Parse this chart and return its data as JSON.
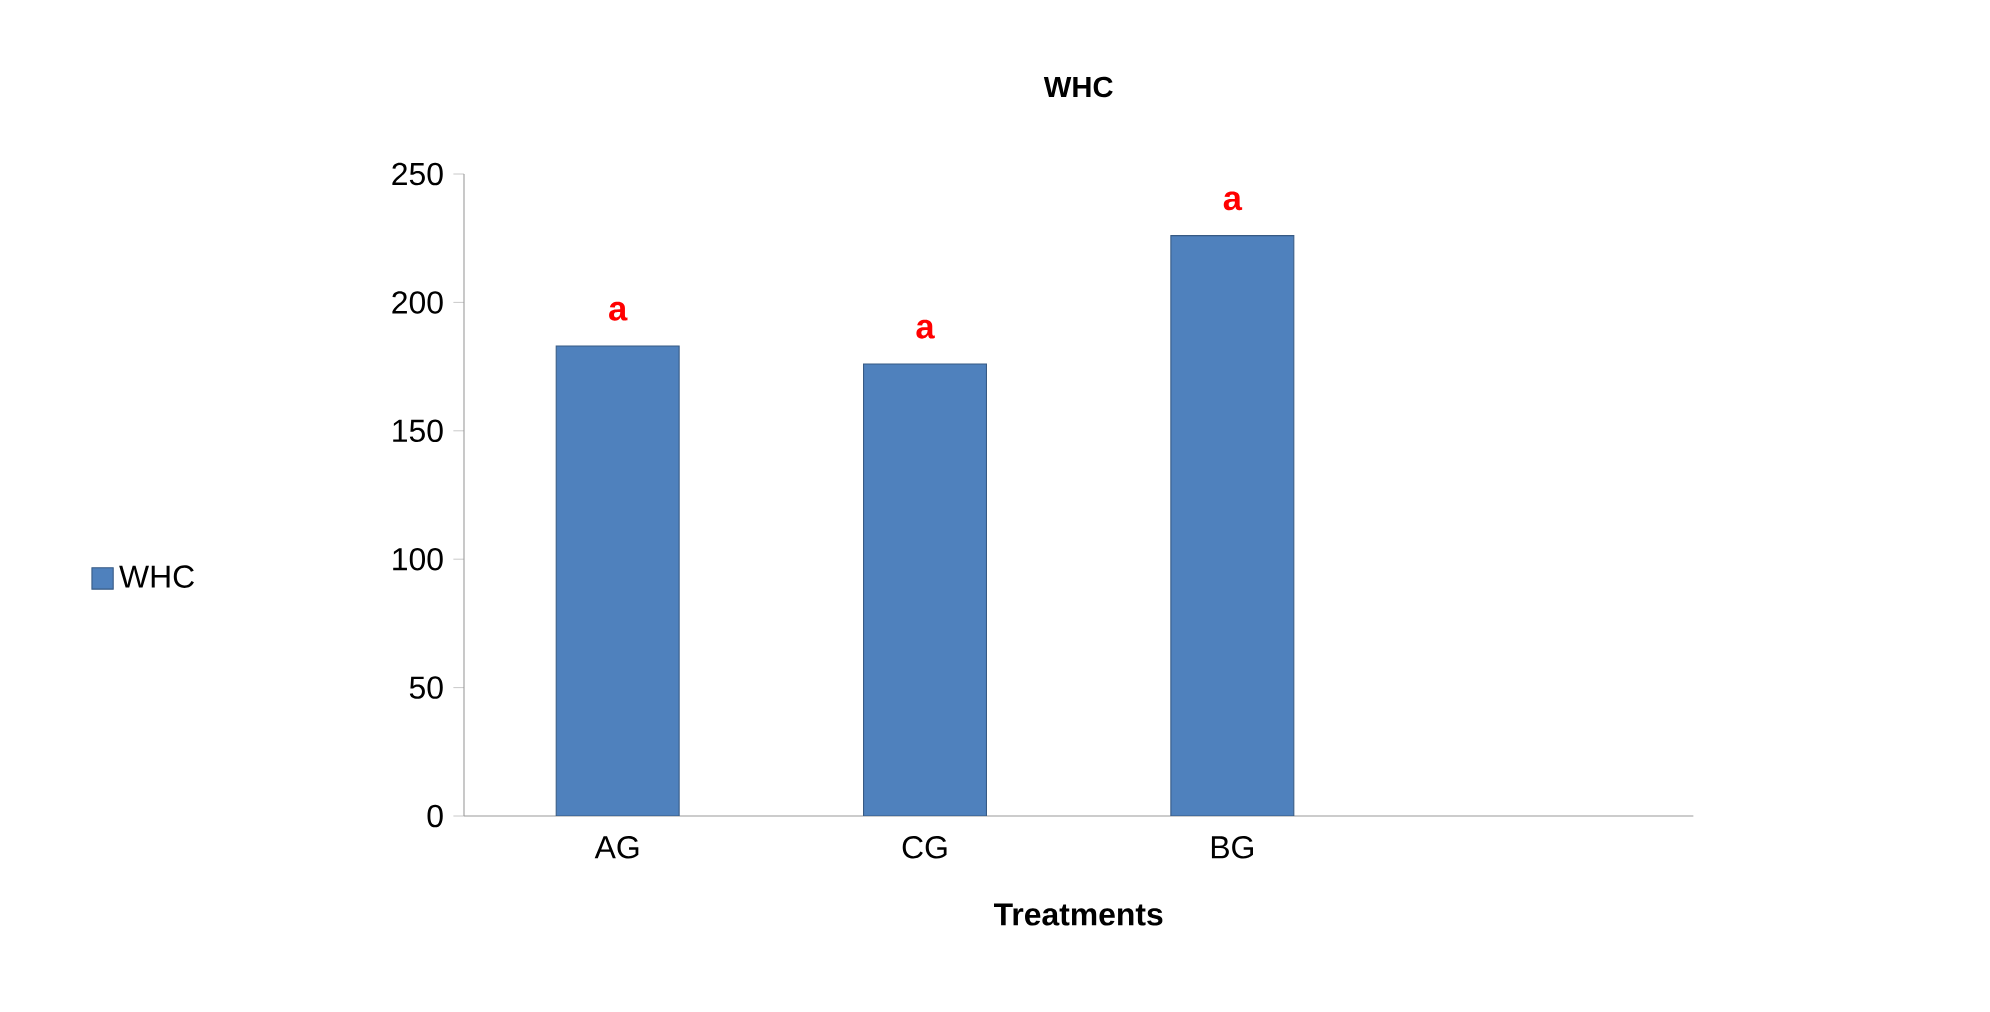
{
  "chart_data": {
    "type": "bar",
    "title": "WHC",
    "xlabel": "Treatments",
    "categories": [
      "AG",
      "CG",
      "BG",
      null
    ],
    "series": [
      {
        "name": "WHC",
        "color": "#4f81bd",
        "values": [
          183,
          176,
          226,
          null
        ]
      }
    ],
    "ylim": [
      0,
      250
    ],
    "yticks": [
      0,
      50,
      100,
      150,
      200,
      250
    ],
    "grid": false,
    "legend": "left",
    "annotations": [
      {
        "text": "a",
        "x": "AG",
        "y": 183
      },
      {
        "text": "a",
        "x": "CG",
        "y": 176
      },
      {
        "text": "a",
        "x": "BG",
        "y": 226
      }
    ]
  }
}
